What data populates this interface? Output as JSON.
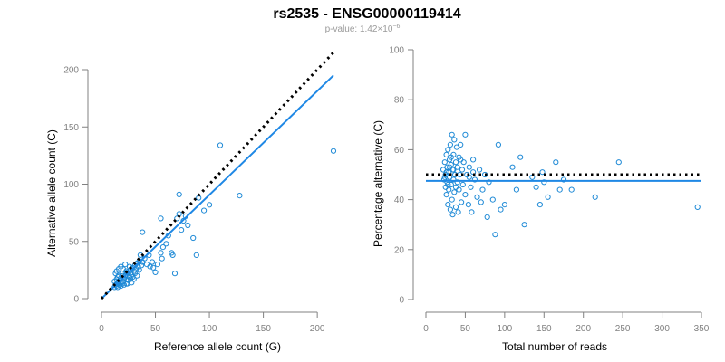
{
  "figure": {
    "title": "rs2535 - ENSG00000119414",
    "subtitle_prefix": "p-value: 1.42×10",
    "subtitle_exponent": "−6"
  },
  "chart_data": [
    {
      "type": "scatter",
      "xlabel": "Reference allele count (G)",
      "ylabel": "Alternative allele count (C)",
      "xlim": [
        0,
        215
      ],
      "ylim": [
        0,
        200
      ],
      "xticks": [
        0,
        50,
        100,
        150,
        200
      ],
      "yticks": [
        0,
        50,
        100,
        150,
        200
      ],
      "reference_line": {
        "style": "dotted",
        "color": "#000000",
        "x": [
          0,
          215
        ],
        "y": [
          0,
          215
        ]
      },
      "fit_line": {
        "style": "solid",
        "color": "#1f88e5",
        "x": [
          0,
          215
        ],
        "y": [
          0,
          195
        ]
      },
      "point_color": "#1f8ad6",
      "grid": false,
      "points": [
        [
          12,
          10
        ],
        [
          13,
          12
        ],
        [
          14,
          11
        ],
        [
          15,
          13
        ],
        [
          16,
          14
        ],
        [
          12,
          15
        ],
        [
          14,
          17
        ],
        [
          15,
          19
        ],
        [
          17,
          16
        ],
        [
          18,
          18
        ],
        [
          16,
          20
        ],
        [
          19,
          22
        ],
        [
          20,
          15
        ],
        [
          21,
          18
        ],
        [
          22,
          20
        ],
        [
          23,
          24
        ],
        [
          24,
          17
        ],
        [
          25,
          22
        ],
        [
          26,
          19
        ],
        [
          27,
          25
        ],
        [
          28,
          21
        ],
        [
          29,
          27
        ],
        [
          30,
          24
        ],
        [
          31,
          29
        ],
        [
          32,
          26
        ],
        [
          33,
          31
        ],
        [
          34,
          28
        ],
        [
          35,
          33
        ],
        [
          36,
          38
        ],
        [
          38,
          32
        ],
        [
          13,
          22
        ],
        [
          14,
          24
        ],
        [
          17,
          12
        ],
        [
          18,
          11
        ],
        [
          20,
          26
        ],
        [
          22,
          30
        ],
        [
          24,
          13
        ],
        [
          26,
          28
        ],
        [
          28,
          14
        ],
        [
          30,
          17
        ],
        [
          15,
          10
        ],
        [
          16,
          26
        ],
        [
          18,
          28
        ],
        [
          19,
          13
        ],
        [
          21,
          12
        ],
        [
          23,
          13
        ],
        [
          25,
          16
        ],
        [
          27,
          17
        ],
        [
          29,
          19
        ],
        [
          31,
          22
        ],
        [
          33,
          20
        ],
        [
          35,
          25
        ],
        [
          37,
          29
        ],
        [
          40,
          35
        ],
        [
          42,
          30
        ],
        [
          44,
          38
        ],
        [
          45,
          28
        ],
        [
          47,
          32
        ],
        [
          48,
          27
        ],
        [
          50,
          23
        ],
        [
          52,
          30
        ],
        [
          55,
          40
        ],
        [
          56,
          35
        ],
        [
          57,
          45
        ],
        [
          60,
          48
        ],
        [
          62,
          55
        ],
        [
          65,
          40
        ],
        [
          66,
          38
        ],
        [
          68,
          22
        ],
        [
          70,
          70
        ],
        [
          72,
          74
        ],
        [
          74,
          60
        ],
        [
          76,
          68
        ],
        [
          78,
          72
        ],
        [
          80,
          64
        ],
        [
          85,
          53
        ],
        [
          88,
          38
        ],
        [
          90,
          88
        ],
        [
          95,
          77
        ],
        [
          100,
          82
        ],
        [
          72,
          91
        ],
        [
          38,
          58
        ],
        [
          55,
          70
        ],
        [
          110,
          134
        ],
        [
          128,
          90
        ],
        [
          215,
          129
        ],
        [
          14,
          13
        ],
        [
          16,
          15
        ],
        [
          20,
          20
        ],
        [
          24,
          23
        ]
      ]
    },
    {
      "type": "scatter",
      "xlabel": "Total number of reads",
      "ylabel": "Percentage alternative (C)",
      "xlim": [
        0,
        350
      ],
      "ylim": [
        0,
        100
      ],
      "xticks": [
        0,
        50,
        100,
        150,
        200,
        250,
        300,
        350
      ],
      "yticks": [
        0,
        20,
        40,
        60,
        80,
        100
      ],
      "reference_line": {
        "style": "dotted",
        "color": "#000000",
        "x": [
          0,
          350
        ],
        "y": [
          50,
          50
        ]
      },
      "fit_line": {
        "style": "solid",
        "color": "#1f88e5",
        "x": [
          0,
          350
        ],
        "y": [
          47.5,
          47.5
        ]
      },
      "point_color": "#1f8ad6",
      "grid": false,
      "points": [
        [
          22,
          52
        ],
        [
          23,
          48
        ],
        [
          24,
          55
        ],
        [
          25,
          50
        ],
        [
          25,
          45
        ],
        [
          26,
          58
        ],
        [
          26,
          42
        ],
        [
          27,
          53
        ],
        [
          27,
          47
        ],
        [
          28,
          60
        ],
        [
          28,
          38
        ],
        [
          29,
          51
        ],
        [
          29,
          44
        ],
        [
          30,
          56
        ],
        [
          30,
          49
        ],
        [
          31,
          62
        ],
        [
          31,
          36
        ],
        [
          32,
          54
        ],
        [
          32,
          46
        ],
        [
          33,
          66
        ],
        [
          33,
          40
        ],
        [
          34,
          52
        ],
        [
          34,
          34
        ],
        [
          35,
          58
        ],
        [
          35,
          48
        ],
        [
          36,
          64
        ],
        [
          36,
          43
        ],
        [
          37,
          50
        ],
        [
          38,
          55
        ],
        [
          38,
          37
        ],
        [
          39,
          61
        ],
        [
          40,
          47
        ],
        [
          40,
          53
        ],
        [
          41,
          35
        ],
        [
          42,
          57
        ],
        [
          42,
          44
        ],
        [
          43,
          50
        ],
        [
          44,
          62
        ],
        [
          45,
          39
        ],
        [
          46,
          52
        ],
        [
          47,
          46
        ],
        [
          48,
          55
        ],
        [
          50,
          42
        ],
        [
          50,
          66
        ],
        [
          52,
          50
        ],
        [
          54,
          38
        ],
        [
          55,
          53
        ],
        [
          57,
          45
        ],
        [
          58,
          35
        ],
        [
          60,
          56
        ],
        [
          62,
          48
        ],
        [
          65,
          41
        ],
        [
          68,
          52
        ],
        [
          70,
          39
        ],
        [
          72,
          44
        ],
        [
          75,
          50
        ],
        [
          78,
          33
        ],
        [
          80,
          47
        ],
        [
          85,
          40
        ],
        [
          88,
          26
        ],
        [
          92,
          62
        ],
        [
          95,
          36
        ],
        [
          100,
          38
        ],
        [
          110,
          53
        ],
        [
          115,
          44
        ],
        [
          120,
          57
        ],
        [
          125,
          30
        ],
        [
          135,
          49
        ],
        [
          140,
          45
        ],
        [
          145,
          38
        ],
        [
          148,
          51
        ],
        [
          155,
          41
        ],
        [
          165,
          55
        ],
        [
          170,
          44
        ],
        [
          175,
          48
        ],
        [
          185,
          44
        ],
        [
          215,
          41
        ],
        [
          245,
          55
        ],
        [
          345,
          37
        ],
        [
          24,
          49
        ],
        [
          26,
          51
        ],
        [
          30,
          53
        ],
        [
          35,
          52
        ],
        [
          28,
          46
        ],
        [
          32,
          57
        ],
        [
          38,
          45
        ],
        [
          44,
          56
        ],
        [
          55,
          49
        ],
        [
          60,
          51
        ],
        [
          150,
          47
        ]
      ]
    }
  ]
}
